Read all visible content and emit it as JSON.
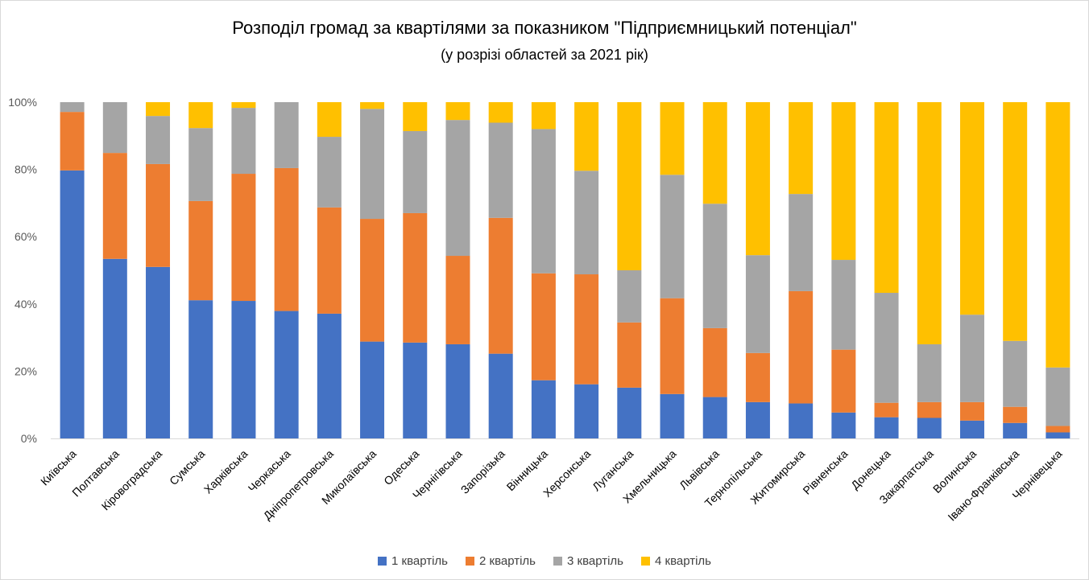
{
  "chart_data": {
    "type": "bar",
    "stacked": "percent",
    "title": "Розподіл громад за квартілями за показником \"Підприємницький потенціал\"",
    "subtitle": "(у розрізі областей за 2021 рік)",
    "xlabel": "",
    "ylabel": "",
    "ylim": [
      0,
      100
    ],
    "yticks": [
      "0%",
      "20%",
      "40%",
      "60%",
      "80%",
      "100%"
    ],
    "legend_position": "bottom",
    "categories": [
      "Київська",
      "Полтавська",
      "Кіровоградська",
      "Сумська",
      "Харківська",
      "Черкаська",
      "Дніпропетровська",
      "Миколаївська",
      "Одеська",
      "Чернігівська",
      "Запорізька",
      "Вінницька",
      "Херсонська",
      "Луганська",
      "Хмельницька",
      "Львівська",
      "Тернопільська",
      "Житомирська",
      "Рівненська",
      "Донецька",
      "Закарпатська",
      "Волинська",
      "Івано-Франківська",
      "Чернівецька"
    ],
    "series": [
      {
        "name": "1 квартіль",
        "color": "#4472C4",
        "values": [
          79.7,
          53.4,
          51.0,
          41.1,
          40.9,
          37.9,
          37.1,
          28.8,
          28.5,
          28.0,
          25.2,
          17.3,
          16.1,
          15.1,
          13.2,
          12.3,
          10.8,
          10.4,
          7.7,
          6.3,
          6.1,
          5.3,
          4.6,
          1.8
        ]
      },
      {
        "name": "2 квартіль",
        "color": "#ED7D31",
        "values": [
          17.4,
          31.5,
          30.6,
          29.5,
          37.8,
          42.5,
          31.6,
          36.5,
          38.5,
          26.3,
          40.4,
          31.8,
          32.7,
          19.4,
          28.5,
          20.5,
          14.6,
          33.4,
          18.7,
          4.3,
          4.7,
          5.5,
          4.8,
          1.9
        ]
      },
      {
        "name": "3 квартіль",
        "color": "#A5A5A5",
        "values": [
          2.9,
          15.1,
          14.3,
          21.7,
          19.6,
          19.6,
          21.0,
          32.7,
          24.4,
          40.4,
          28.3,
          42.9,
          30.8,
          15.5,
          36.7,
          37.0,
          29.1,
          28.9,
          26.7,
          32.7,
          17.2,
          26.0,
          19.6,
          17.4
        ]
      },
      {
        "name": "4 квартіль",
        "color": "#FFC000",
        "values": [
          0.0,
          0.0,
          4.1,
          7.7,
          1.7,
          0.0,
          10.3,
          2.0,
          8.6,
          5.3,
          6.1,
          8.0,
          20.4,
          50.0,
          21.6,
          30.2,
          45.5,
          27.3,
          46.9,
          56.7,
          72.0,
          63.2,
          71.0,
          78.9
        ]
      }
    ]
  }
}
